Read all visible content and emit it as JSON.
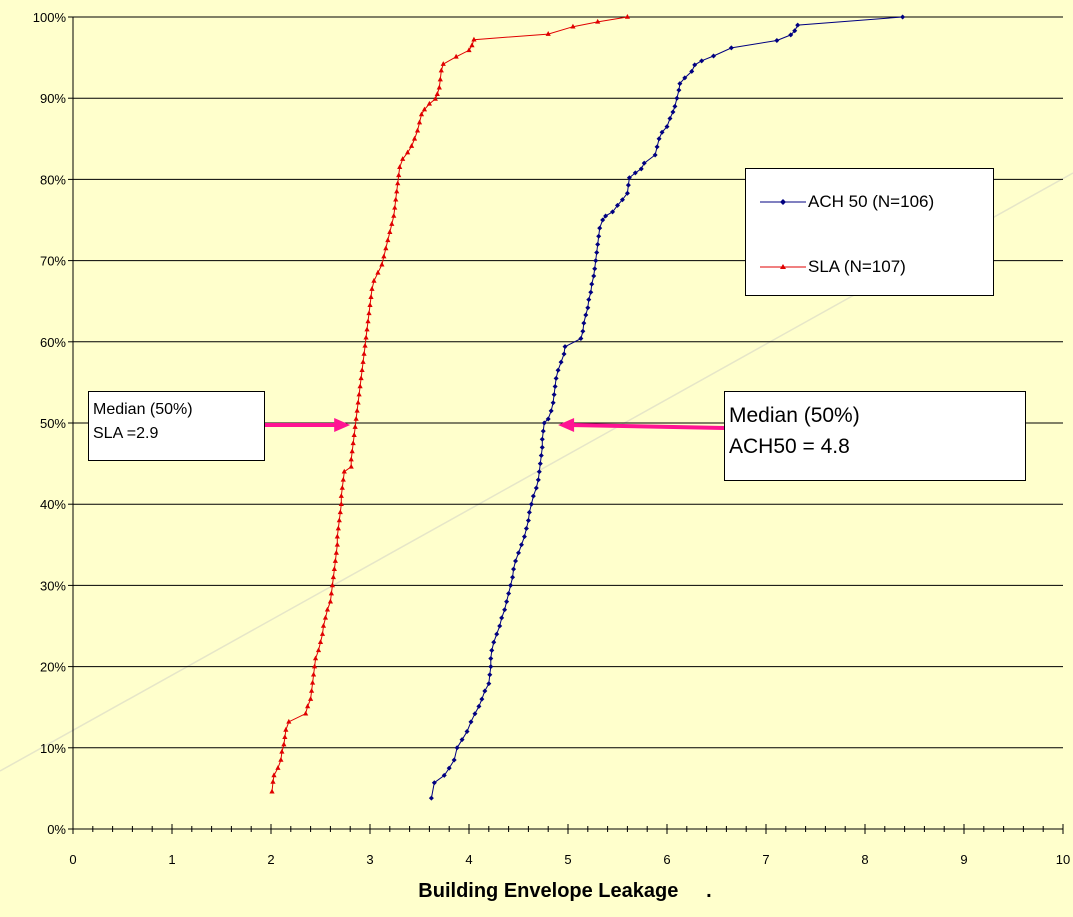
{
  "chart_data": {
    "type": "line",
    "xlabel": "Building Envelope Leakage     .",
    "ylabel": "",
    "xlim": [
      0,
      10
    ],
    "ylim": [
      0,
      100
    ],
    "x_ticks": [
      "0",
      "1",
      "2",
      "3",
      "4",
      "5",
      "6",
      "7",
      "8",
      "9",
      "10"
    ],
    "y_ticks": [
      "0%",
      "10%",
      "20%",
      "30%",
      "40%",
      "50%",
      "60%",
      "70%",
      "80%",
      "90%",
      "100%"
    ],
    "grid": "horizontal",
    "legend_position": "upper-right",
    "series": [
      {
        "name": "ACH 50 (N=106)",
        "color": "#000080",
        "marker": "diamond",
        "points": [
          [
            3.62,
            3.8
          ],
          [
            3.65,
            5.7
          ],
          [
            3.75,
            6.6
          ],
          [
            3.8,
            7.5
          ],
          [
            3.85,
            8.5
          ],
          [
            3.88,
            10.0
          ],
          [
            3.93,
            11.0
          ],
          [
            3.98,
            12.0
          ],
          [
            4.02,
            13.2
          ],
          [
            4.06,
            14.2
          ],
          [
            4.1,
            15.1
          ],
          [
            4.13,
            16.0
          ],
          [
            4.16,
            17.0
          ],
          [
            4.2,
            17.9
          ],
          [
            4.21,
            19.0
          ],
          [
            4.22,
            20.0
          ],
          [
            4.22,
            21.0
          ],
          [
            4.23,
            22.0
          ],
          [
            4.25,
            23.0
          ],
          [
            4.28,
            24.0
          ],
          [
            4.31,
            25.0
          ],
          [
            4.33,
            26.0
          ],
          [
            4.36,
            27.0
          ],
          [
            4.38,
            28.0
          ],
          [
            4.4,
            29.0
          ],
          [
            4.42,
            30.0
          ],
          [
            4.44,
            31.0
          ],
          [
            4.45,
            32.0
          ],
          [
            4.47,
            33.0
          ],
          [
            4.5,
            34.0
          ],
          [
            4.53,
            35.0
          ],
          [
            4.56,
            36.0
          ],
          [
            4.58,
            37.0
          ],
          [
            4.6,
            38.0
          ],
          [
            4.61,
            39.0
          ],
          [
            4.63,
            40.0
          ],
          [
            4.65,
            41.0
          ],
          [
            4.68,
            42.0
          ],
          [
            4.7,
            43.0
          ],
          [
            4.71,
            44.0
          ],
          [
            4.72,
            45.0
          ],
          [
            4.73,
            46.0
          ],
          [
            4.74,
            47.0
          ],
          [
            4.74,
            48.0
          ],
          [
            4.75,
            49.0
          ],
          [
            4.76,
            50.0
          ],
          [
            4.8,
            50.5
          ],
          [
            4.83,
            51.5
          ],
          [
            4.85,
            52.5
          ],
          [
            4.86,
            53.5
          ],
          [
            4.87,
            54.5
          ],
          [
            4.88,
            55.5
          ],
          [
            4.9,
            56.5
          ],
          [
            4.93,
            57.5
          ],
          [
            4.96,
            58.5
          ],
          [
            4.97,
            59.4
          ],
          [
            5.13,
            60.4
          ],
          [
            5.15,
            61.3
          ],
          [
            5.16,
            62.3
          ],
          [
            5.18,
            63.3
          ],
          [
            5.2,
            64.2
          ],
          [
            5.21,
            65.2
          ],
          [
            5.23,
            66.1
          ],
          [
            5.24,
            67.1
          ],
          [
            5.26,
            68.1
          ],
          [
            5.27,
            69.0
          ],
          [
            5.28,
            70.0
          ],
          [
            5.29,
            71.0
          ],
          [
            5.3,
            72.0
          ],
          [
            5.31,
            73.0
          ],
          [
            5.32,
            74.0
          ],
          [
            5.35,
            75.0
          ],
          [
            5.38,
            75.5
          ],
          [
            5.45,
            76.0
          ],
          [
            5.5,
            76.8
          ],
          [
            5.55,
            77.5
          ],
          [
            5.6,
            78.3
          ],
          [
            5.61,
            79.3
          ],
          [
            5.62,
            80.2
          ],
          [
            5.68,
            80.8
          ],
          [
            5.74,
            81.3
          ],
          [
            5.77,
            82.0
          ],
          [
            5.88,
            83.0
          ],
          [
            5.9,
            84.0
          ],
          [
            5.92,
            85.0
          ],
          [
            5.95,
            85.8
          ],
          [
            6.0,
            86.5
          ],
          [
            6.03,
            87.5
          ],
          [
            6.06,
            88.3
          ],
          [
            6.08,
            89.0
          ],
          [
            6.1,
            90.0
          ],
          [
            6.12,
            91.0
          ],
          [
            6.13,
            91.8
          ],
          [
            6.18,
            92.5
          ],
          [
            6.25,
            93.3
          ],
          [
            6.28,
            94.1
          ],
          [
            6.35,
            94.6
          ],
          [
            6.47,
            95.2
          ],
          [
            6.65,
            96.2
          ],
          [
            7.11,
            97.1
          ],
          [
            7.25,
            97.8
          ],
          [
            7.29,
            98.3
          ],
          [
            7.32,
            99.0
          ],
          [
            8.38,
            100.0
          ]
        ]
      },
      {
        "name": "SLA (N=107)",
        "color": "#e00000",
        "marker": "triangle",
        "points": [
          [
            2.01,
            4.6
          ],
          [
            2.02,
            5.8
          ],
          [
            2.03,
            6.6
          ],
          [
            2.07,
            7.5
          ],
          [
            2.1,
            8.5
          ],
          [
            2.11,
            9.5
          ],
          [
            2.13,
            10.4
          ],
          [
            2.14,
            11.3
          ],
          [
            2.15,
            12.2
          ],
          [
            2.18,
            13.2
          ],
          [
            2.35,
            14.2
          ],
          [
            2.37,
            15.1
          ],
          [
            2.4,
            16.0
          ],
          [
            2.41,
            17.0
          ],
          [
            2.42,
            18.0
          ],
          [
            2.43,
            19.0
          ],
          [
            2.44,
            20.0
          ],
          [
            2.45,
            21.0
          ],
          [
            2.48,
            22.0
          ],
          [
            2.5,
            23.0
          ],
          [
            2.52,
            24.0
          ],
          [
            2.53,
            25.0
          ],
          [
            2.55,
            26.0
          ],
          [
            2.57,
            27.0
          ],
          [
            2.6,
            28.0
          ],
          [
            2.61,
            29.0
          ],
          [
            2.62,
            30.0
          ],
          [
            2.63,
            31.0
          ],
          [
            2.64,
            32.0
          ],
          [
            2.65,
            33.0
          ],
          [
            2.66,
            34.0
          ],
          [
            2.67,
            35.0
          ],
          [
            2.67,
            36.0
          ],
          [
            2.68,
            37.0
          ],
          [
            2.69,
            38.0
          ],
          [
            2.7,
            39.0
          ],
          [
            2.71,
            40.0
          ],
          [
            2.71,
            41.0
          ],
          [
            2.72,
            42.0
          ],
          [
            2.73,
            43.0
          ],
          [
            2.74,
            44.0
          ],
          [
            2.81,
            44.6
          ],
          [
            2.81,
            45.5
          ],
          [
            2.82,
            46.5
          ],
          [
            2.83,
            47.5
          ],
          [
            2.84,
            48.5
          ],
          [
            2.85,
            49.5
          ],
          [
            2.86,
            50.5
          ],
          [
            2.87,
            51.5
          ],
          [
            2.88,
            52.5
          ],
          [
            2.89,
            53.5
          ],
          [
            2.9,
            54.5
          ],
          [
            2.91,
            55.5
          ],
          [
            2.92,
            56.5
          ],
          [
            2.93,
            57.5
          ],
          [
            2.94,
            58.5
          ],
          [
            2.95,
            59.5
          ],
          [
            2.96,
            60.5
          ],
          [
            2.97,
            61.5
          ],
          [
            2.98,
            62.5
          ],
          [
            2.99,
            63.5
          ],
          [
            3.0,
            64.5
          ],
          [
            3.01,
            65.5
          ],
          [
            3.02,
            66.5
          ],
          [
            3.04,
            67.5
          ],
          [
            3.08,
            68.5
          ],
          [
            3.12,
            69.5
          ],
          [
            3.14,
            70.5
          ],
          [
            3.16,
            71.5
          ],
          [
            3.18,
            72.5
          ],
          [
            3.2,
            73.5
          ],
          [
            3.22,
            74.5
          ],
          [
            3.24,
            75.5
          ],
          [
            3.25,
            76.5
          ],
          [
            3.26,
            77.5
          ],
          [
            3.27,
            78.5
          ],
          [
            3.28,
            79.5
          ],
          [
            3.29,
            80.5
          ],
          [
            3.3,
            81.5
          ],
          [
            3.33,
            82.5
          ],
          [
            3.38,
            83.3
          ],
          [
            3.42,
            84.1
          ],
          [
            3.45,
            85.0
          ],
          [
            3.48,
            86.0
          ],
          [
            3.5,
            87.0
          ],
          [
            3.52,
            88.0
          ],
          [
            3.55,
            88.6
          ],
          [
            3.6,
            89.3
          ],
          [
            3.66,
            89.9
          ],
          [
            3.68,
            90.5
          ],
          [
            3.7,
            91.3
          ],
          [
            3.71,
            92.3
          ],
          [
            3.72,
            93.4
          ],
          [
            3.74,
            94.2
          ],
          [
            3.87,
            95.1
          ],
          [
            4.0,
            95.9
          ],
          [
            4.03,
            96.5
          ],
          [
            4.05,
            97.2
          ],
          [
            4.8,
            97.9
          ],
          [
            5.05,
            98.8
          ],
          [
            5.3,
            99.4
          ],
          [
            5.6,
            100.0
          ]
        ]
      }
    ],
    "annotations": [
      {
        "lines": [
          "Median (50%)",
          "SLA =2.9"
        ],
        "target_x": 2.8,
        "target_y": 50
      },
      {
        "lines": [
          "Median (50%)",
          "ACH50 = 4.8"
        ],
        "target_x": 4.9,
        "target_y": 50
      }
    ],
    "reference_line": {
      "from": [
        0,
        11
      ],
      "to": [
        10,
        80
      ],
      "color": "#e6e6c8"
    }
  }
}
